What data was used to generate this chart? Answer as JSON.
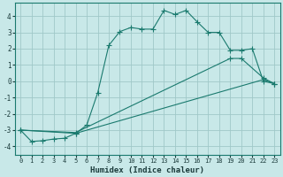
{
  "xlabel": "Humidex (Indice chaleur)",
  "xlim": [
    -0.5,
    23.5
  ],
  "ylim": [
    -4.5,
    4.8
  ],
  "yticks": [
    -4,
    -3,
    -2,
    -1,
    0,
    1,
    2,
    3,
    4
  ],
  "xticks": [
    0,
    1,
    2,
    3,
    4,
    5,
    6,
    7,
    8,
    9,
    10,
    11,
    12,
    13,
    14,
    15,
    16,
    17,
    18,
    19,
    20,
    21,
    22,
    23
  ],
  "bg_color": "#c8e8e8",
  "grid_color": "#a0c8c8",
  "line_color": "#1a7a6e",
  "curve_x": [
    0,
    1,
    2,
    3,
    4,
    5,
    6,
    7,
    8,
    9,
    10,
    11,
    12,
    13,
    14,
    15,
    16,
    17,
    18,
    19,
    20,
    21,
    22,
    23
  ],
  "curve_y": [
    -3.0,
    -3.7,
    -3.65,
    -3.55,
    -3.5,
    -3.2,
    -2.7,
    -0.7,
    2.2,
    3.05,
    3.3,
    3.2,
    3.2,
    4.35,
    4.1,
    4.35,
    3.65,
    3.0,
    3.0,
    1.9,
    1.9,
    2.0,
    0.0,
    -0.15
  ],
  "line2_x": [
    0,
    5,
    19,
    20,
    22,
    23
  ],
  "line2_y": [
    -3.0,
    -3.15,
    1.4,
    1.4,
    0.2,
    -0.15
  ],
  "line3_x": [
    0,
    5,
    22,
    23
  ],
  "line3_y": [
    -3.0,
    -3.2,
    0.1,
    -0.15
  ]
}
